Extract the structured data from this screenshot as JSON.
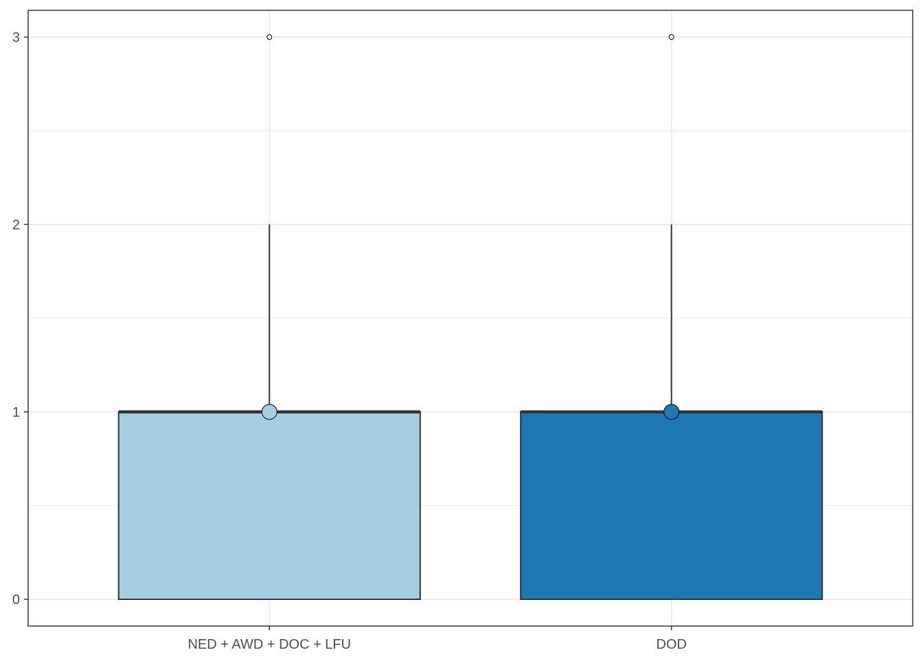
{
  "chart_data": {
    "type": "box",
    "categories": [
      "NED + AWD + DOC + LFU",
      "DOD"
    ],
    "boxes": [
      {
        "category": "NED + AWD + DOC + LFU",
        "min": 0,
        "q1": 0,
        "median": 1,
        "q3": 1,
        "whisker_high": 2,
        "outliers": [
          3
        ],
        "mean": 1,
        "fill": "#a6cee3"
      },
      {
        "category": "DOD",
        "min": 0,
        "q1": 0,
        "median": 1,
        "q3": 1,
        "whisker_high": 2,
        "outliers": [
          3
        ],
        "mean": 1,
        "fill": "#1f78b4"
      }
    ],
    "yticks": [
      0,
      1,
      2,
      3
    ],
    "ylim": [
      -0.145,
      3.15
    ],
    "title": "",
    "xlabel": "",
    "ylabel": "",
    "grid": true,
    "legend": "none",
    "colors": {
      "grid": "#ebebeb",
      "axis": "#333333",
      "text": "#4d4d4d",
      "box_edge": "#333333"
    }
  }
}
